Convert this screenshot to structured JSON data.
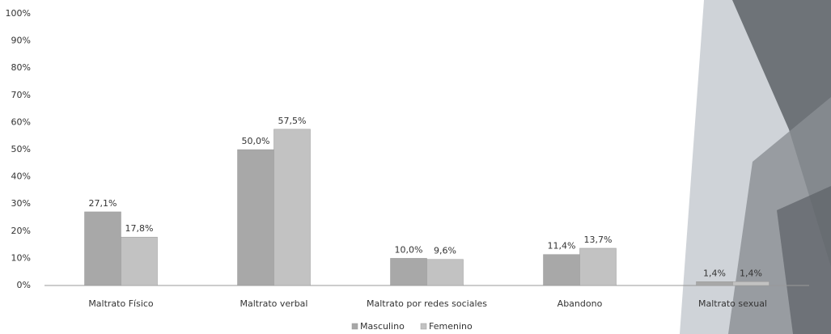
{
  "chart_data": {
    "type": "bar",
    "categories": [
      "Maltrato Físico",
      "Maltrato verbal",
      "Maltrato por redes sociales",
      "Abandono",
      "Maltrato sexual"
    ],
    "series": [
      {
        "name": "Masculino",
        "color": "#a8a8a8",
        "values": [
          27.1,
          50.0,
          10.0,
          11.4,
          1.4
        ],
        "value_labels": [
          "27,1%",
          "50,0%",
          "10,0%",
          "11,4%",
          "1,4%"
        ]
      },
      {
        "name": "Femenino",
        "color": "#c2c2c2",
        "values": [
          17.8,
          57.5,
          9.6,
          13.7,
          1.4
        ],
        "value_labels": [
          "17,8%",
          "57,5%",
          "9,6%",
          "13,7%",
          "1,4%"
        ]
      }
    ],
    "ylim": [
      0,
      100
    ],
    "yticks": [
      {
        "value": 0,
        "label": "0%"
      },
      {
        "value": 10,
        "label": "10%"
      },
      {
        "value": 20,
        "label": "20%"
      },
      {
        "value": 30,
        "label": "30%"
      },
      {
        "value": 40,
        "label": "40%"
      },
      {
        "value": 50,
        "label": "50%"
      },
      {
        "value": 60,
        "label": "60%"
      },
      {
        "value": 70,
        "label": "70%"
      },
      {
        "value": 80,
        "label": "80%"
      },
      {
        "value": 90,
        "label": "90%"
      },
      {
        "value": 100,
        "label": "100%"
      }
    ],
    "grid": false,
    "legend": "bottom"
  }
}
